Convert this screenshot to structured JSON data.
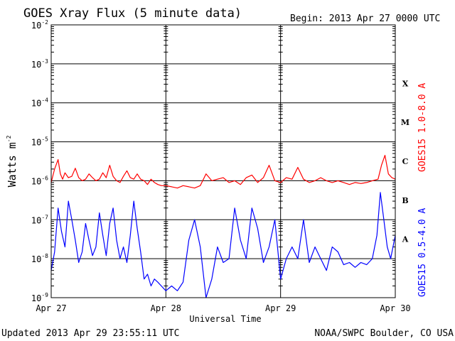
{
  "title": "GOES Xray Flux (5 minute data)",
  "begin": "Begin:  2013 Apr 27 0000 UTC",
  "updated": "Updated 2013 Apr 29 23:55:11 UTC",
  "credit": "NOAA/SWPC Boulder, CO USA",
  "colors": {
    "long_channel": "#ff0000",
    "short_channel": "#0000ff",
    "grid": "#000000"
  },
  "chart_data": {
    "type": "line",
    "title": "GOES Xray Flux (5 minute data)",
    "xlabel": "Universal Time",
    "ylabel": "Watts m",
    "ylabel_sup": "-2",
    "y_scale": "log",
    "ylim": [
      1e-09,
      0.01
    ],
    "xlim_days": [
      0,
      3
    ],
    "x_ticks": [
      "Apr 27",
      "Apr 28",
      "Apr 29",
      "Apr 30"
    ],
    "y_ticks": [
      {
        "base": "10",
        "exp": "-2"
      },
      {
        "base": "10",
        "exp": "-3"
      },
      {
        "base": "10",
        "exp": "-4"
      },
      {
        "base": "10",
        "exp": "-5"
      },
      {
        "base": "10",
        "exp": "-6"
      },
      {
        "base": "10",
        "exp": "-7"
      },
      {
        "base": "10",
        "exp": "-8"
      },
      {
        "base": "10",
        "exp": "-9"
      }
    ],
    "flare_classes": [
      "X",
      "M",
      "C",
      "B",
      "A"
    ],
    "grid": true,
    "series": [
      {
        "name": "GOES15 1.0-8.0 A",
        "color": "#ff0000",
        "x_days": [
          0.0,
          0.03,
          0.06,
          0.08,
          0.1,
          0.12,
          0.15,
          0.18,
          0.21,
          0.24,
          0.27,
          0.3,
          0.33,
          0.36,
          0.39,
          0.42,
          0.45,
          0.48,
          0.51,
          0.54,
          0.57,
          0.6,
          0.63,
          0.66,
          0.69,
          0.72,
          0.75,
          0.78,
          0.81,
          0.84,
          0.87,
          0.9,
          0.93,
          0.96,
          1.0,
          1.05,
          1.1,
          1.15,
          1.2,
          1.25,
          1.3,
          1.35,
          1.4,
          1.45,
          1.5,
          1.55,
          1.6,
          1.65,
          1.7,
          1.75,
          1.8,
          1.85,
          1.9,
          1.95,
          2.0,
          2.05,
          2.1,
          2.15,
          2.2,
          2.25,
          2.3,
          2.35,
          2.4,
          2.45,
          2.5,
          2.55,
          2.6,
          2.65,
          2.7,
          2.75,
          2.8,
          2.85,
          2.88,
          2.91,
          2.94,
          2.97,
          3.0
        ],
        "y": [
          9e-07,
          2e-06,
          3.5e-06,
          1.5e-06,
          1.1e-06,
          1.6e-06,
          1.2e-06,
          1.3e-06,
          2.1e-06,
          1.2e-06,
          1e-06,
          1.1e-06,
          1.5e-06,
          1.2e-06,
          1e-06,
          1.1e-06,
          1.6e-06,
          1.2e-06,
          2.5e-06,
          1.3e-06,
          1e-06,
          9e-07,
          1.3e-06,
          1.8e-06,
          1.2e-06,
          1.1e-06,
          1.5e-06,
          1.1e-06,
          1e-06,
          8e-07,
          1.1e-06,
          9e-07,
          8e-07,
          7.5e-07,
          7.5e-07,
          7e-07,
          6.5e-07,
          7.5e-07,
          7e-07,
          6.5e-07,
          7.5e-07,
          1.5e-06,
          1e-06,
          1.1e-06,
          1.2e-06,
          9e-07,
          1e-06,
          8e-07,
          1.2e-06,
          1.4e-06,
          9e-07,
          1.2e-06,
          2.5e-06,
          1e-06,
          9e-07,
          1.2e-06,
          1.1e-06,
          2.2e-06,
          1.1e-06,
          9e-07,
          1e-06,
          1.2e-06,
          1e-06,
          9e-07,
          1e-06,
          9e-07,
          8e-07,
          9e-07,
          8.5e-07,
          9e-07,
          1e-06,
          1.1e-06,
          2.5e-06,
          4.5e-06,
          1.5e-06,
          1.2e-06,
          1.1e-06
        ]
      },
      {
        "name": "GOES15 0.5-4.0 A",
        "color": "#0000ff",
        "x_days": [
          0.0,
          0.03,
          0.06,
          0.09,
          0.12,
          0.15,
          0.18,
          0.21,
          0.24,
          0.27,
          0.3,
          0.33,
          0.36,
          0.39,
          0.42,
          0.45,
          0.48,
          0.51,
          0.54,
          0.57,
          0.6,
          0.63,
          0.66,
          0.69,
          0.72,
          0.75,
          0.78,
          0.81,
          0.84,
          0.87,
          0.9,
          0.93,
          0.96,
          1.0,
          1.05,
          1.1,
          1.15,
          1.2,
          1.25,
          1.3,
          1.35,
          1.4,
          1.45,
          1.5,
          1.55,
          1.6,
          1.65,
          1.7,
          1.75,
          1.8,
          1.85,
          1.9,
          1.95,
          2.0,
          2.05,
          2.1,
          2.15,
          2.2,
          2.25,
          2.3,
          2.35,
          2.4,
          2.45,
          2.5,
          2.55,
          2.6,
          2.65,
          2.7,
          2.75,
          2.8,
          2.84,
          2.87,
          2.9,
          2.93,
          2.96,
          3.0
        ],
        "y": [
          5e-09,
          1.5e-08,
          2e-07,
          5e-08,
          2e-08,
          3e-07,
          1e-07,
          3e-08,
          8e-09,
          1.5e-08,
          8e-08,
          3e-08,
          1.2e-08,
          2e-08,
          1.5e-07,
          4e-08,
          1.2e-08,
          8e-08,
          2e-07,
          3e-08,
          1e-08,
          2e-08,
          8e-09,
          4e-08,
          3e-07,
          6e-08,
          1.5e-08,
          3e-09,
          4e-09,
          2e-09,
          3e-09,
          2.5e-09,
          2e-09,
          1.5e-09,
          2e-09,
          1.5e-09,
          2.5e-09,
          3e-08,
          1e-07,
          2e-08,
          1e-09,
          3e-09,
          2e-08,
          8e-09,
          1e-08,
          2e-07,
          3e-08,
          1e-08,
          2e-07,
          6e-08,
          8e-09,
          2e-08,
          1e-07,
          3e-09,
          1e-08,
          2e-08,
          1e-08,
          1e-07,
          8e-09,
          2e-08,
          1e-08,
          5e-09,
          2e-08,
          1.5e-08,
          7e-09,
          8e-09,
          6e-09,
          8e-09,
          7e-09,
          1e-08,
          4e-08,
          5e-07,
          1e-07,
          2e-08,
          1e-08,
          4e-08
        ]
      }
    ]
  }
}
